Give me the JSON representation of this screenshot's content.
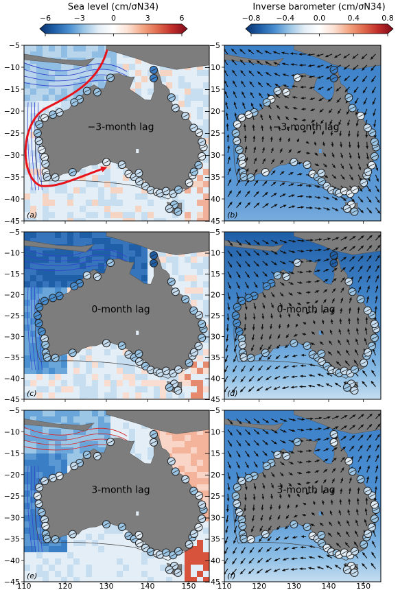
{
  "chart_data": {
    "type": "map",
    "colorbars": [
      {
        "id": "sea-level",
        "title": "Sea level (cm/σN34)",
        "ticks": [
          -6,
          -3,
          0,
          3,
          6
        ],
        "tick_labels": [
          "−6",
          "−3",
          "0",
          "3",
          "6"
        ],
        "range": [
          -6,
          6
        ],
        "colors": [
          "#08306b",
          "#1f5fa8",
          "#4a8fd0",
          "#9cc6e6",
          "#e4eef6",
          "#ffffff",
          "#fbe0d2",
          "#f3a582",
          "#e06a4c",
          "#bf2c2a",
          "#7d0a19"
        ]
      },
      {
        "id": "inverse-barometer",
        "title": "Inverse barometer (cm/σN34)",
        "ticks": [
          -0.8,
          -0.4,
          0.0,
          0.4,
          0.8
        ],
        "tick_labels": [
          "−0.8",
          "−0.4",
          "0.0",
          "0.4",
          "0.8"
        ],
        "range": [
          -0.8,
          0.8
        ],
        "colors": [
          "#08306b",
          "#1f5fa8",
          "#4a8fd0",
          "#9cc6e6",
          "#e4eef6",
          "#ffffff",
          "#fbe0d2",
          "#f3a582",
          "#e06a4c",
          "#bf2c2a",
          "#7d0a19"
        ]
      }
    ],
    "x_axis": {
      "range": [
        110,
        155
      ],
      "ticks": [
        110,
        120,
        130,
        140,
        150
      ],
      "tick_labels": [
        "110",
        "120",
        "130",
        "140",
        "150"
      ]
    },
    "y_axis": {
      "range": [
        -45,
        -5
      ],
      "ticks": [
        -5,
        -10,
        -15,
        -20,
        -25,
        -30,
        -35,
        -40,
        -45
      ],
      "tick_labels": [
        "−5",
        "−10",
        "−15",
        "−20",
        "−25",
        "−30",
        "−35",
        "−40",
        "−45"
      ]
    },
    "panels": [
      {
        "id": "a",
        "tag": "(a)",
        "lag_label": "−3-month lag",
        "field": "sea-level",
        "wind_vectors": false,
        "path_arrow": true
      },
      {
        "id": "b",
        "tag": "(b)",
        "lag_label": "−3-month lag",
        "field": "inverse-barometer",
        "wind_vectors": true,
        "path_arrow": false
      },
      {
        "id": "c",
        "tag": "(c)",
        "lag_label": "0-month lag",
        "field": "sea-level",
        "wind_vectors": false,
        "path_arrow": false
      },
      {
        "id": "d",
        "tag": "(d)",
        "lag_label": "0-month lag",
        "field": "inverse-barometer",
        "wind_vectors": true,
        "path_arrow": false
      },
      {
        "id": "e",
        "tag": "(e)",
        "lag_label": "3-month lag",
        "field": "sea-level",
        "wind_vectors": false,
        "path_arrow": false
      },
      {
        "id": "f",
        "tag": "(f)",
        "lag_label": "3-month lag",
        "field": "inverse-barometer",
        "wind_vectors": true,
        "path_arrow": false
      }
    ],
    "coastline_lonlat": [
      [
        115.0,
        -21.8
      ],
      [
        116.5,
        -20.7
      ],
      [
        118.5,
        -20.3
      ],
      [
        121.0,
        -19.5
      ],
      [
        122.3,
        -17.3
      ],
      [
        123.5,
        -17.0
      ],
      [
        124.5,
        -16.0
      ],
      [
        125.5,
        -14.8
      ],
      [
        127.0,
        -14.0
      ],
      [
        128.5,
        -14.9
      ],
      [
        129.5,
        -14.9
      ],
      [
        130.3,
        -12.7
      ],
      [
        131.5,
        -11.6
      ],
      [
        133.0,
        -11.4
      ],
      [
        134.5,
        -12.0
      ],
      [
        136.0,
        -12.3
      ],
      [
        136.8,
        -12.2
      ],
      [
        136.2,
        -13.5
      ],
      [
        135.6,
        -15.0
      ],
      [
        137.7,
        -16.3
      ],
      [
        139.3,
        -17.4
      ],
      [
        140.8,
        -17.5
      ],
      [
        141.6,
        -15.5
      ],
      [
        141.5,
        -12.5
      ],
      [
        142.0,
        -11.0
      ],
      [
        142.5,
        -10.7
      ],
      [
        143.0,
        -12.0
      ],
      [
        143.5,
        -13.8
      ],
      [
        144.5,
        -14.3
      ],
      [
        145.3,
        -15.2
      ],
      [
        145.6,
        -16.9
      ],
      [
        146.2,
        -18.9
      ],
      [
        148.8,
        -20.3
      ],
      [
        150.5,
        -22.5
      ],
      [
        151.5,
        -24.0
      ],
      [
        153.0,
        -25.5
      ],
      [
        153.2,
        -27.5
      ],
      [
        153.6,
        -29.0
      ],
      [
        153.1,
        -30.5
      ],
      [
        152.5,
        -32.0
      ],
      [
        151.5,
        -33.7
      ],
      [
        150.5,
        -35.2
      ],
      [
        150.0,
        -36.4
      ],
      [
        149.9,
        -37.6
      ],
      [
        148.0,
        -37.8
      ],
      [
        146.5,
        -38.9
      ],
      [
        145.0,
        -38.5
      ],
      [
        144.0,
        -38.3
      ],
      [
        143.0,
        -38.7
      ],
      [
        141.5,
        -38.3
      ],
      [
        140.5,
        -37.9
      ],
      [
        139.7,
        -37.0
      ],
      [
        139.3,
        -35.7
      ],
      [
        138.4,
        -35.6
      ],
      [
        138.3,
        -34.7
      ],
      [
        137.9,
        -33.7
      ],
      [
        137.7,
        -35.0
      ],
      [
        137.0,
        -35.2
      ],
      [
        136.8,
        -34.8
      ],
      [
        135.9,
        -35.0
      ],
      [
        135.6,
        -34.3
      ],
      [
        135.2,
        -33.0
      ],
      [
        134.2,
        -32.7
      ],
      [
        133.0,
        -32.1
      ],
      [
        131.2,
        -31.5
      ],
      [
        129.0,
        -31.6
      ],
      [
        127.5,
        -32.2
      ],
      [
        126.0,
        -32.3
      ],
      [
        124.0,
        -33.0
      ],
      [
        123.2,
        -33.9
      ],
      [
        121.5,
        -33.9
      ],
      [
        119.5,
        -34.3
      ],
      [
        118.0,
        -35.0
      ],
      [
        116.5,
        -35.0
      ],
      [
        115.1,
        -34.3
      ],
      [
        115.0,
        -33.5
      ],
      [
        115.6,
        -33.3
      ],
      [
        115.7,
        -31.8
      ],
      [
        115.0,
        -30.0
      ],
      [
        114.9,
        -29.0
      ],
      [
        114.2,
        -27.3
      ],
      [
        113.6,
        -26.6
      ],
      [
        113.4,
        -24.8
      ],
      [
        113.8,
        -23.0
      ],
      [
        114.2,
        -22.0
      ]
    ],
    "tasmania_lonlat": [
      [
        144.7,
        -40.7
      ],
      [
        146.5,
        -41.1
      ],
      [
        148.3,
        -40.9
      ],
      [
        148.3,
        -42.2
      ],
      [
        147.8,
        -43.2
      ],
      [
        146.9,
        -43.6
      ],
      [
        145.5,
        -42.9
      ],
      [
        145.2,
        -42.0
      ],
      [
        144.7,
        -40.7
      ]
    ],
    "stations_lonlat": [
      [
        115.0,
        -21.5
      ],
      [
        113.7,
        -23.0
      ],
      [
        113.3,
        -25.0
      ],
      [
        113.6,
        -26.8
      ],
      [
        114.3,
        -28.8
      ],
      [
        115.0,
        -30.5
      ],
      [
        115.2,
        -32.0
      ],
      [
        115.3,
        -33.9
      ],
      [
        115.6,
        -35.0
      ],
      [
        117.6,
        -35.1
      ],
      [
        121.8,
        -33.9
      ],
      [
        130.0,
        -31.6
      ],
      [
        133.8,
        -32.2
      ],
      [
        135.4,
        -34.3
      ],
      [
        136.8,
        -35.0
      ],
      [
        137.9,
        -34.1
      ],
      [
        138.0,
        -36.0
      ],
      [
        139.5,
        -37.1
      ],
      [
        140.8,
        -38.0
      ],
      [
        142.3,
        -38.4
      ],
      [
        143.0,
        -38.7
      ],
      [
        144.5,
        -38.2
      ],
      [
        146.2,
        -38.8
      ],
      [
        147.5,
        -37.9
      ],
      [
        150.1,
        -36.3
      ],
      [
        150.9,
        -34.6
      ],
      [
        151.3,
        -33.8
      ],
      [
        152.4,
        -32.3
      ],
      [
        153.2,
        -30.3
      ],
      [
        153.6,
        -28.2
      ],
      [
        153.2,
        -27.0
      ],
      [
        152.5,
        -24.9
      ],
      [
        151.2,
        -23.8
      ],
      [
        149.2,
        -21.1
      ],
      [
        146.8,
        -19.3
      ],
      [
        145.8,
        -16.9
      ],
      [
        141.5,
        -12.5
      ],
      [
        141.5,
        -10.6
      ],
      [
        131.0,
        -12.4
      ],
      [
        127.8,
        -15.7
      ],
      [
        125.3,
        -15.4
      ],
      [
        123.5,
        -17.3
      ],
      [
        122.2,
        -18.0
      ],
      [
        118.6,
        -20.3
      ],
      [
        117.0,
        -20.8
      ],
      [
        146.5,
        -41.3
      ],
      [
        147.4,
        -42.9
      ],
      [
        145.3,
        -42.2
      ]
    ],
    "annotations": [
      "−3-month lag",
      "0-month lag",
      "3-month lag",
      "(a)",
      "(b)",
      "(c)",
      "(d)",
      "(e)",
      "(f)"
    ]
  }
}
